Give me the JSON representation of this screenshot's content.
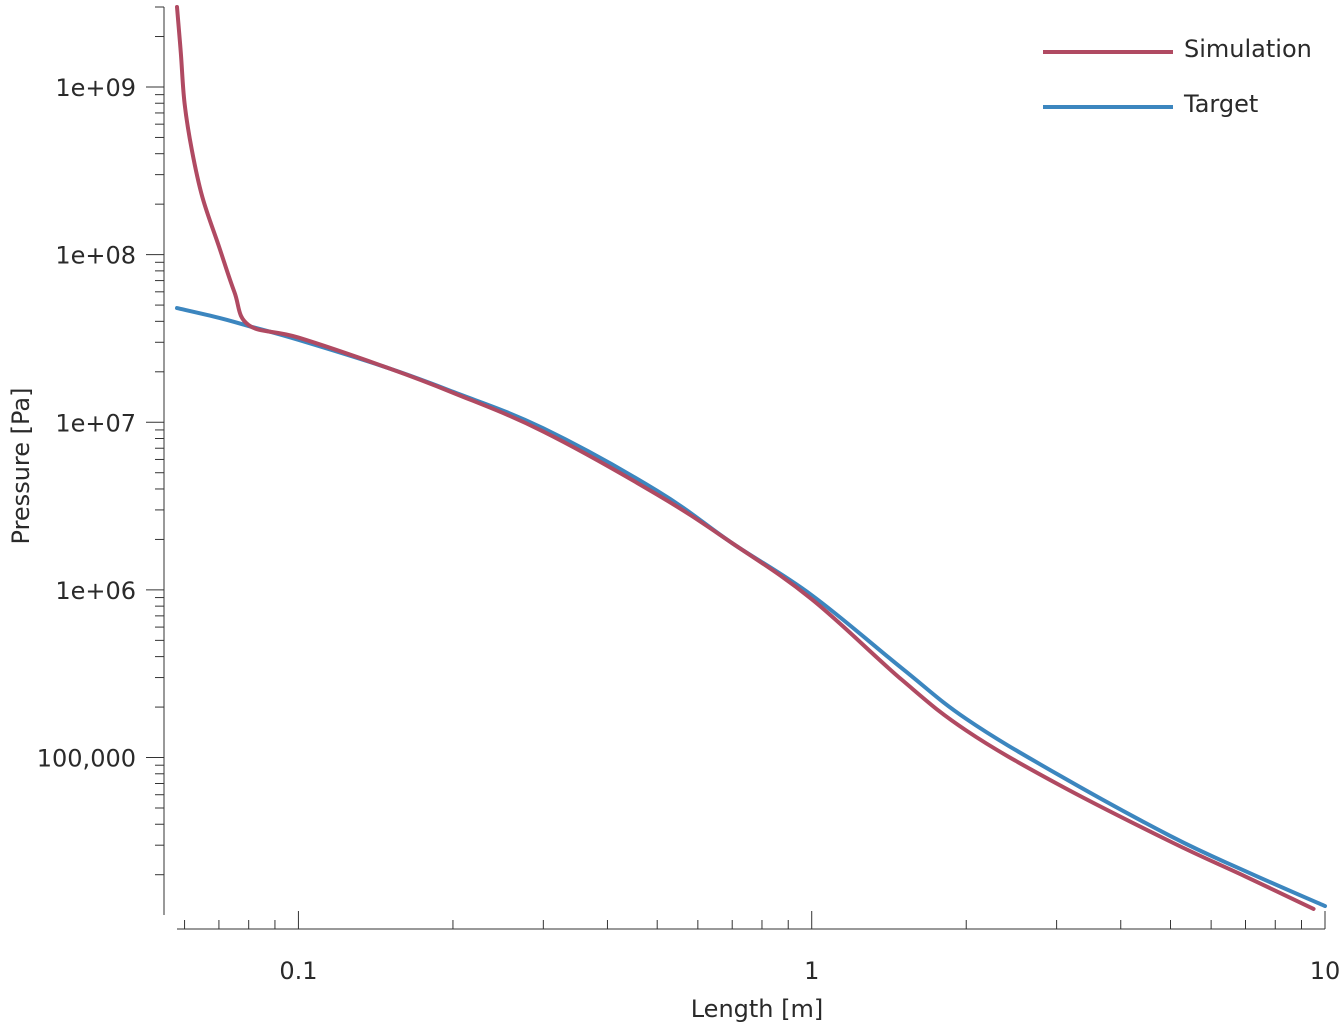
{
  "chart_data": {
    "type": "line",
    "title": "",
    "xlabel": "Length [m]",
    "ylabel": "Pressure [Pa]",
    "xscale": "log",
    "yscale": "log",
    "xlim": [
      0.058,
      10
    ],
    "ylim": [
      11500,
      3000000000
    ],
    "grid": false,
    "legend_position": "top-right",
    "x_ticks": [
      {
        "value": 0.1,
        "label": "0.1"
      },
      {
        "value": 1,
        "label": "1"
      },
      {
        "value": 10,
        "label": "10"
      }
    ],
    "y_ticks": [
      {
        "value": 100000,
        "label": "100,000"
      },
      {
        "value": 1000000,
        "label": "1e+06"
      },
      {
        "value": 10000000,
        "label": "1e+07"
      },
      {
        "value": 100000000,
        "label": "1e+08"
      },
      {
        "value": 1000000000,
        "label": "1e+09"
      }
    ],
    "series": [
      {
        "name": "Simulation",
        "color": "#b04a62",
        "x": [
          0.058,
          0.059,
          0.06,
          0.062,
          0.065,
          0.07,
          0.075,
          0.08,
          0.1,
          0.15,
          0.2,
          0.3,
          0.5,
          0.7,
          1.0,
          1.5,
          2.0,
          3.0,
          5.0,
          7.0,
          9.5
        ],
        "y": [
          3000000000,
          1600000000,
          800000000,
          420000000,
          220000000,
          112000000,
          60000000,
          38000000,
          32000000,
          21000000,
          15000000,
          8800000,
          3700000,
          1900000,
          880000,
          290000,
          145000,
          70000,
          31500,
          19500,
          12500
        ]
      },
      {
        "name": "Target",
        "color": "#3c86bf",
        "x": [
          0.058,
          0.07,
          0.08,
          0.1,
          0.15,
          0.2,
          0.3,
          0.5,
          0.7,
          1.0,
          1.5,
          2.0,
          3.0,
          5.0,
          7.0,
          10.0
        ],
        "y": [
          48000000,
          42000000,
          37500000,
          31000000,
          21000000,
          15200000,
          9200000,
          3900000,
          1900000,
          930000,
          340000,
          170000,
          80000,
          34000,
          21000,
          13000
        ]
      }
    ]
  }
}
